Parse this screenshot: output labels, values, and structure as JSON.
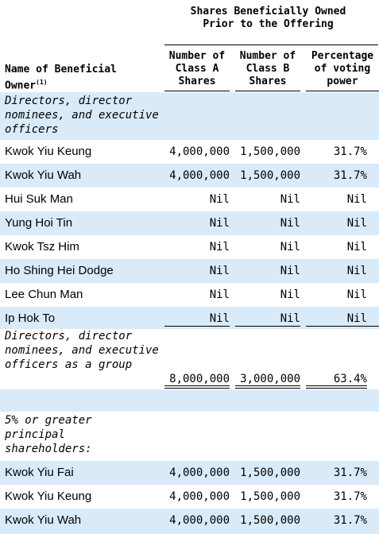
{
  "header": {
    "group": "Shares Beneficially Owned Prior to the Offering",
    "name_col": "Name of Beneficial Owner",
    "name_note": "(1)",
    "col_a": "Number of Class A Shares",
    "col_b": "Number of Class B Shares",
    "col_c": "Percentage of voting power"
  },
  "sections": {
    "directors": "Directors, director nominees, and executive officers",
    "group_total": "Directors, director nominees, and executive officers as a group",
    "principal": "5% or greater principal shareholders:"
  },
  "directors": [
    {
      "name": "Kwok Yiu Keung",
      "a": "4,000,000",
      "b": "1,500,000",
      "pct": "31.7%"
    },
    {
      "name": "Kwok Yiu Wah",
      "a": "4,000,000",
      "b": "1,500,000",
      "pct": "31.7%"
    },
    {
      "name": "Hui Suk Man",
      "a": "Nil",
      "b": "Nil",
      "pct": "Nil"
    },
    {
      "name": "Yung Hoi Tin",
      "a": "Nil",
      "b": "Nil",
      "pct": "Nil"
    },
    {
      "name": "Kwok Tsz Him",
      "a": "Nil",
      "b": "Nil",
      "pct": "Nil"
    },
    {
      "name": "Ho Shing Hei Dodge",
      "a": "Nil",
      "b": "Nil",
      "pct": "Nil"
    },
    {
      "name": "Lee Chun Man",
      "a": "Nil",
      "b": "Nil",
      "pct": "Nil"
    },
    {
      "name": "Ip Hok To",
      "a": "Nil",
      "b": "Nil",
      "pct": "Nil"
    }
  ],
  "group_total": {
    "a": "8,000,000",
    "b": "3,000,000",
    "pct": "63.4%"
  },
  "principal": [
    {
      "name": "Kwok Yiu Fai",
      "a": "4,000,000",
      "b": "1,500,000",
      "pct": "31.7%"
    },
    {
      "name": "Kwok Yiu Keung",
      "a": "4,000,000",
      "b": "1,500,000",
      "pct": "31.7%"
    },
    {
      "name": "Kwok Yiu Wah",
      "a": "4,000,000",
      "b": "1,500,000",
      "pct": "31.7%"
    }
  ]
}
